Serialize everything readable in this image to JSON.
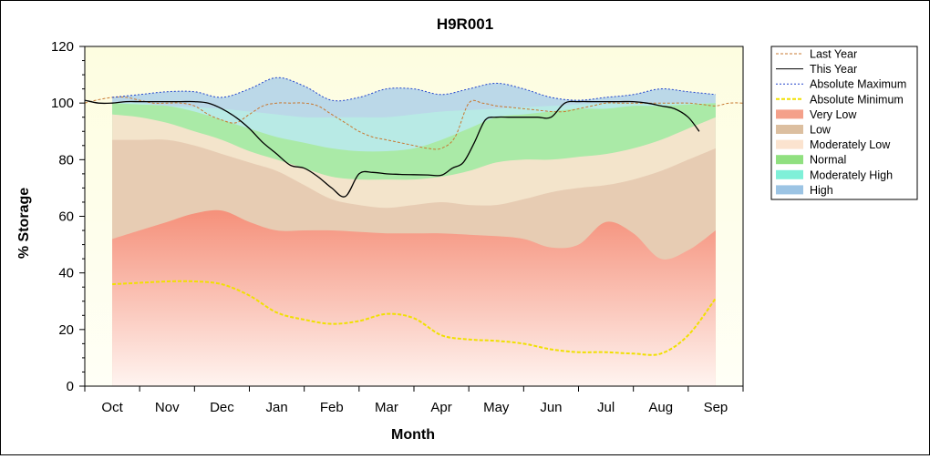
{
  "chart_data": {
    "type": "area",
    "title": "H9R001",
    "xlabel": "Month",
    "ylabel": "% Storage",
    "ylim": [
      0,
      120
    ],
    "yticks": [
      0,
      20,
      40,
      60,
      80,
      100,
      120
    ],
    "categories": [
      "Oct",
      "Nov",
      "Dec",
      "Jan",
      "Feb",
      "Mar",
      "Apr",
      "May",
      "Jun",
      "Jul",
      "Aug",
      "Sep"
    ],
    "legend_position": "top-right",
    "x_samples": [
      0,
      0.5,
      1,
      1.5,
      2,
      2.5,
      3,
      3.5,
      4,
      4.5,
      5,
      5.5,
      6,
      6.5,
      7,
      7.5,
      8,
      8.5,
      9,
      9.5,
      10,
      10.5,
      11
    ],
    "bands": [
      {
        "name": "Very Low",
        "color": "#f4a08a",
        "top": [
          52,
          55,
          58,
          61,
          62,
          58,
          55,
          55,
          55,
          54.5,
          54,
          54,
          54,
          53.5,
          53,
          52,
          49,
          50,
          58,
          54,
          45,
          48,
          55
        ]
      },
      {
        "name": "Low",
        "color": "#e6c9b0",
        "top": [
          87,
          87,
          87,
          85,
          82,
          79,
          76,
          71,
          66,
          64,
          63,
          64,
          65,
          64,
          64,
          66,
          68.5,
          70,
          71,
          73,
          76,
          80,
          84
        ]
      },
      {
        "name": "Moderately Low",
        "color": "#fbe3cf",
        "top": [
          96,
          95,
          93,
          90,
          87,
          83,
          80,
          77,
          74,
          73,
          73,
          73,
          74,
          76,
          79,
          80,
          80,
          81,
          82,
          84,
          87,
          91,
          95
        ]
      },
      {
        "name": "Normal",
        "color": "#a8eaa0",
        "top": [
          100,
          99.5,
          99,
          97,
          94,
          91,
          88,
          86,
          84,
          83,
          83,
          84,
          87,
          91,
          95,
          96,
          97,
          98,
          98,
          99,
          99,
          99.5,
          100
        ]
      },
      {
        "name": "Moderately High",
        "color": "#b8ece4",
        "top": [
          100,
          100,
          99,
          98.5,
          98,
          97,
          96,
          95,
          95,
          95,
          95,
          96,
          97,
          97.5,
          98,
          98.5,
          99,
          99.5,
          100,
          100,
          100,
          100,
          100
        ]
      },
      {
        "name": "High",
        "color": "#b4d4e8",
        "top": [
          102,
          103,
          104,
          104,
          102,
          105,
          109,
          106,
          101,
          102,
          105,
          105,
          103,
          105,
          107,
          105,
          102,
          101,
          102,
          103,
          105,
          104,
          103
        ]
      }
    ],
    "series": [
      {
        "name": "Last Year",
        "color": "#c87830",
        "dash": "3,2",
        "x": [
          -0.5,
          -0.3,
          0,
          0.25,
          0.5,
          0.75,
          1,
          1.25,
          1.5,
          1.75,
          2,
          2.25,
          2.5,
          2.75,
          3,
          3.25,
          3.5,
          3.75,
          4,
          4.25,
          4.5,
          4.75,
          5,
          5.25,
          5.5,
          5.75,
          6,
          6.25,
          6.5,
          6.75,
          7,
          7.25,
          7.5,
          7.75,
          8,
          8.25,
          8.5,
          8.75,
          9,
          9.25,
          9.5,
          9.75,
          10,
          10.25,
          10.5,
          10.75,
          11,
          11.25,
          11.5
        ],
        "y": [
          100,
          101,
          102,
          102,
          101,
          100,
          100,
          100,
          99,
          96,
          94,
          93,
          96,
          99,
          100,
          100,
          100,
          99,
          96,
          93,
          90,
          88,
          87,
          86,
          85,
          84,
          84,
          88,
          100,
          100,
          99,
          98.5,
          98,
          97.5,
          97,
          97,
          98,
          99,
          100,
          100,
          100,
          100,
          100,
          100,
          100,
          99.5,
          99,
          100,
          100
        ]
      },
      {
        "name": "This Year",
        "color": "#000000",
        "dash": "",
        "x": [
          -0.5,
          -0.25,
          0,
          0.25,
          0.5,
          0.75,
          1,
          1.25,
          1.5,
          1.75,
          2,
          2.25,
          2.5,
          2.75,
          3,
          3.25,
          3.5,
          3.75,
          4,
          4.25,
          4.5,
          4.75,
          5,
          5.25,
          5.5,
          5.75,
          6,
          6.2,
          6.4,
          6.6,
          6.8,
          7,
          7.25,
          7.5,
          7.75,
          8,
          8.25,
          8.5,
          8.75,
          9,
          9.25,
          9.5,
          9.75,
          10,
          10.25,
          10.5,
          10.7
        ],
        "y": [
          101,
          100,
          100,
          100.5,
          100.5,
          100.5,
          100.5,
          100.5,
          100.5,
          100,
          98,
          95,
          91,
          86,
          82,
          78,
          77,
          74,
          70,
          67,
          75,
          75.5,
          75,
          74.8,
          74.7,
          74.6,
          74.5,
          77,
          79,
          86,
          94,
          95,
          95,
          95,
          95,
          95,
          100,
          100.5,
          100.5,
          100.5,
          100.5,
          100.5,
          100,
          99,
          98,
          95,
          90
        ]
      },
      {
        "name": "Absolute Maximum",
        "color": "#2244cc",
        "dash": "2,2",
        "x": [
          0,
          0.5,
          1,
          1.5,
          2,
          2.5,
          3,
          3.5,
          4,
          4.5,
          5,
          5.5,
          6,
          6.5,
          7,
          7.5,
          8,
          8.5,
          9,
          9.5,
          10,
          10.5,
          11
        ],
        "y": [
          102,
          103,
          104,
          104,
          102,
          105,
          109,
          106,
          101,
          102,
          105,
          105,
          103,
          105,
          107,
          105,
          102,
          101,
          102,
          103,
          105,
          104,
          103
        ]
      },
      {
        "name": "Absolute Minimum",
        "color": "#f0e000",
        "dash": "4,2",
        "x": [
          0,
          0.5,
          1,
          1.5,
          2,
          2.5,
          3,
          3.5,
          4,
          4.5,
          5,
          5.5,
          6,
          6.5,
          7,
          7.5,
          8,
          8.5,
          9,
          9.5,
          10,
          10.5,
          11
        ],
        "y": [
          36,
          36.5,
          37,
          37,
          36,
          32,
          26,
          23.5,
          22,
          23,
          25.5,
          24,
          18,
          16.5,
          16,
          15,
          13,
          12,
          12,
          11.5,
          11.5,
          18,
          31
        ]
      }
    ],
    "legend": [
      {
        "label": "Last Year",
        "kind": "line",
        "color": "#c87830",
        "dash": "3,2"
      },
      {
        "label": "This Year",
        "kind": "line",
        "color": "#000000",
        "dash": ""
      },
      {
        "label": "Absolute Maximum",
        "kind": "line",
        "color": "#2244cc",
        "dash": "2,2"
      },
      {
        "label": "Absolute Minimum",
        "kind": "line",
        "color": "#f0e000",
        "dash": "4,2"
      },
      {
        "label": "Very Low",
        "kind": "swatch",
        "color": "#f4a08a"
      },
      {
        "label": "Low",
        "kind": "swatch",
        "color": "#dcbfa0"
      },
      {
        "label": "Moderately Low",
        "kind": "swatch",
        "color": "#fbe3cf"
      },
      {
        "label": "Normal",
        "kind": "swatch",
        "color": "#90e080"
      },
      {
        "label": "Moderately High",
        "kind": "swatch",
        "color": "#7ff0d8"
      },
      {
        "label": "High",
        "kind": "swatch",
        "color": "#9cc4e4"
      }
    ],
    "colors": {
      "plot_background": "#fdfde6"
    }
  }
}
